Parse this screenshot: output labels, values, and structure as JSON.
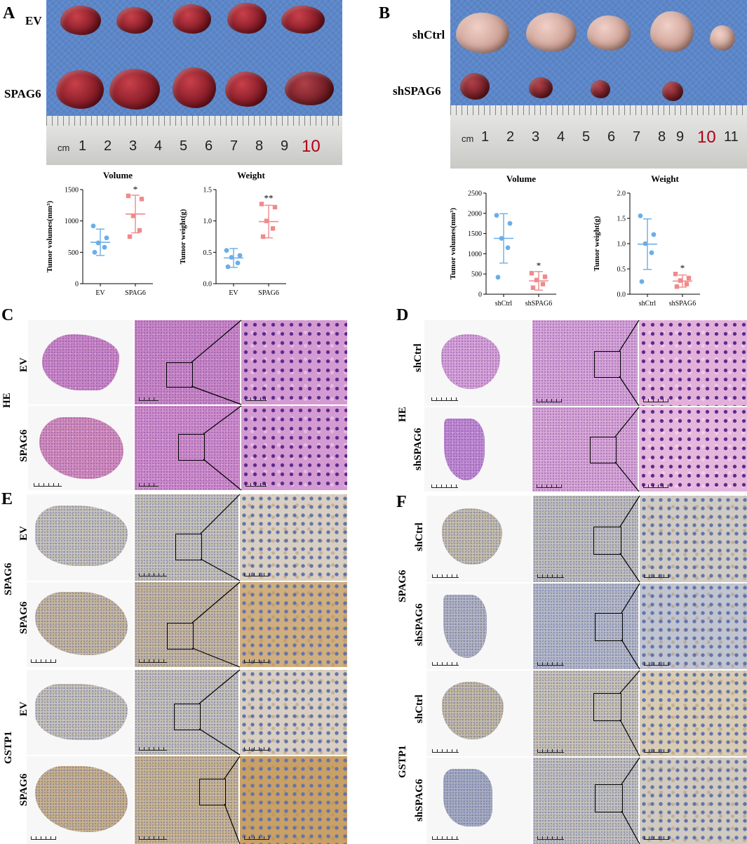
{
  "panels": {
    "A": {
      "letter": "A",
      "rows": [
        "EV",
        "SPAG6"
      ],
      "ruler_label": "cm",
      "ruler_numbers": [
        "1",
        "2",
        "3",
        "4",
        "5",
        "6",
        "7",
        "8",
        "9",
        "10"
      ]
    },
    "B": {
      "letter": "B",
      "rows": [
        "shCtrl",
        "shSPAG6"
      ],
      "ruler_label": "cm",
      "ruler_numbers": [
        "1",
        "2",
        "3",
        "4",
        "5",
        "6",
        "7",
        "8",
        "9",
        "10",
        "11"
      ]
    },
    "C": {
      "letter": "C",
      "stain": "HE",
      "rows": [
        "EV",
        "SPAG6"
      ]
    },
    "D": {
      "letter": "D",
      "stain": "HE",
      "rows": [
        "shCtrl",
        "shSPAG6"
      ]
    },
    "E": {
      "letter": "E",
      "groups": [
        {
          "stain": "SPAG6",
          "rows": [
            "EV",
            "SPAG6"
          ]
        },
        {
          "stain": "GSTP1",
          "rows": [
            "EV",
            "SPAG6"
          ]
        }
      ]
    },
    "F": {
      "letter": "F",
      "groups": [
        {
          "stain": "SPAG6",
          "rows": [
            "shCtrl",
            "shSPAG6"
          ]
        },
        {
          "stain": "GSTP1",
          "rows": [
            "shCtrl",
            "shSPAG6"
          ]
        }
      ]
    }
  },
  "chart_data": [
    {
      "id": "A-volume",
      "type": "scatter",
      "title": "Volume",
      "ylabel": "Tumor volumes(mm³)",
      "categories": [
        "EV",
        "SPAG6"
      ],
      "ylim": [
        0,
        1500
      ],
      "yticks": [
        0,
        500,
        1000,
        1500
      ],
      "series": [
        {
          "points": [
            500,
            580,
            650,
            730,
            920
          ],
          "mean": 660,
          "sd": 210,
          "color": "#6aaee8"
        },
        {
          "points": [
            750,
            850,
            1080,
            1350,
            1400
          ],
          "mean": 1110,
          "sd": 300,
          "color": "#f08a8a"
        }
      ],
      "annotations": [
        {
          "category": "SPAG6",
          "text": "*"
        }
      ]
    },
    {
      "id": "A-weight",
      "type": "scatter",
      "title": "Weight",
      "ylabel": "Tumor weight(g)",
      "categories": [
        "EV",
        "SPAG6"
      ],
      "ylim": [
        0,
        1.5
      ],
      "yticks": [
        0.0,
        0.5,
        1.0,
        1.5
      ],
      "series": [
        {
          "points": [
            0.27,
            0.33,
            0.42,
            0.45,
            0.53
          ],
          "mean": 0.41,
          "sd": 0.15,
          "color": "#6aaee8"
        },
        {
          "points": [
            0.75,
            0.88,
            1.0,
            1.22,
            1.27
          ],
          "mean": 0.99,
          "sd": 0.26,
          "color": "#f08a8a"
        }
      ],
      "annotations": [
        {
          "category": "SPAG6",
          "text": "**"
        }
      ]
    },
    {
      "id": "B-volume",
      "type": "scatter",
      "title": "Volume",
      "ylabel": "Tumor volumes(mm³)",
      "categories": [
        "shCtrl",
        "shSPAG6"
      ],
      "ylim": [
        0,
        2500
      ],
      "yticks": [
        0,
        500,
        1000,
        1500,
        2000,
        2500
      ],
      "series": [
        {
          "points": [
            420,
            1150,
            1380,
            1750,
            1950
          ],
          "mean": 1380,
          "sd": 610,
          "color": "#6aaee8"
        },
        {
          "points": [
            160,
            250,
            350,
            430,
            520
          ],
          "mean": 330,
          "sd": 230,
          "color": "#f08a8a"
        }
      ],
      "annotations": [
        {
          "category": "shSPAG6",
          "text": "*"
        }
      ]
    },
    {
      "id": "B-weight",
      "type": "scatter",
      "title": "Weight",
      "ylabel": "Tumor weight(g)",
      "categories": [
        "shCtrl",
        "shSPAG6"
      ],
      "ylim": [
        0,
        2.0
      ],
      "yticks": [
        0.0,
        0.5,
        1.0,
        1.5,
        2.0
      ],
      "series": [
        {
          "points": [
            0.25,
            0.82,
            1.0,
            1.18,
            1.55
          ],
          "mean": 0.99,
          "sd": 0.5,
          "color": "#6aaee8"
        },
        {
          "points": [
            0.15,
            0.2,
            0.27,
            0.32,
            0.4
          ],
          "mean": 0.26,
          "sd": 0.12,
          "color": "#f08a8a"
        }
      ],
      "annotations": [
        {
          "category": "shSPAG6",
          "text": "*"
        }
      ]
    }
  ]
}
